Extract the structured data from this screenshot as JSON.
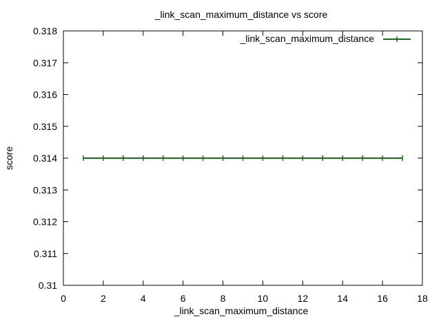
{
  "chart_data": {
    "type": "line",
    "title": "_link_scan_maximum_distance vs score",
    "xlabel": "_link_scan_maximum_distance",
    "ylabel": "score",
    "xlim": [
      0,
      18
    ],
    "ylim": [
      0.31,
      0.318
    ],
    "x_ticks": [
      "0",
      "2",
      "4",
      "6",
      "8",
      "10",
      "12",
      "14",
      "16",
      "18"
    ],
    "y_ticks": [
      "0.31",
      "0.311",
      "0.312",
      "0.313",
      "0.314",
      "0.315",
      "0.316",
      "0.317",
      "0.318"
    ],
    "grid": false,
    "legend_position": "top-right",
    "series": [
      {
        "name": "_link_scan_maximum_distance",
        "color": "#1a6b1a",
        "x": [
          1,
          2,
          3,
          4,
          5,
          6,
          7,
          8,
          9,
          10,
          11,
          12,
          13,
          14,
          15,
          16,
          17
        ],
        "y": [
          0.314,
          0.314,
          0.314,
          0.314,
          0.314,
          0.314,
          0.314,
          0.314,
          0.314,
          0.314,
          0.314,
          0.314,
          0.314,
          0.314,
          0.314,
          0.314,
          0.314
        ]
      }
    ]
  }
}
